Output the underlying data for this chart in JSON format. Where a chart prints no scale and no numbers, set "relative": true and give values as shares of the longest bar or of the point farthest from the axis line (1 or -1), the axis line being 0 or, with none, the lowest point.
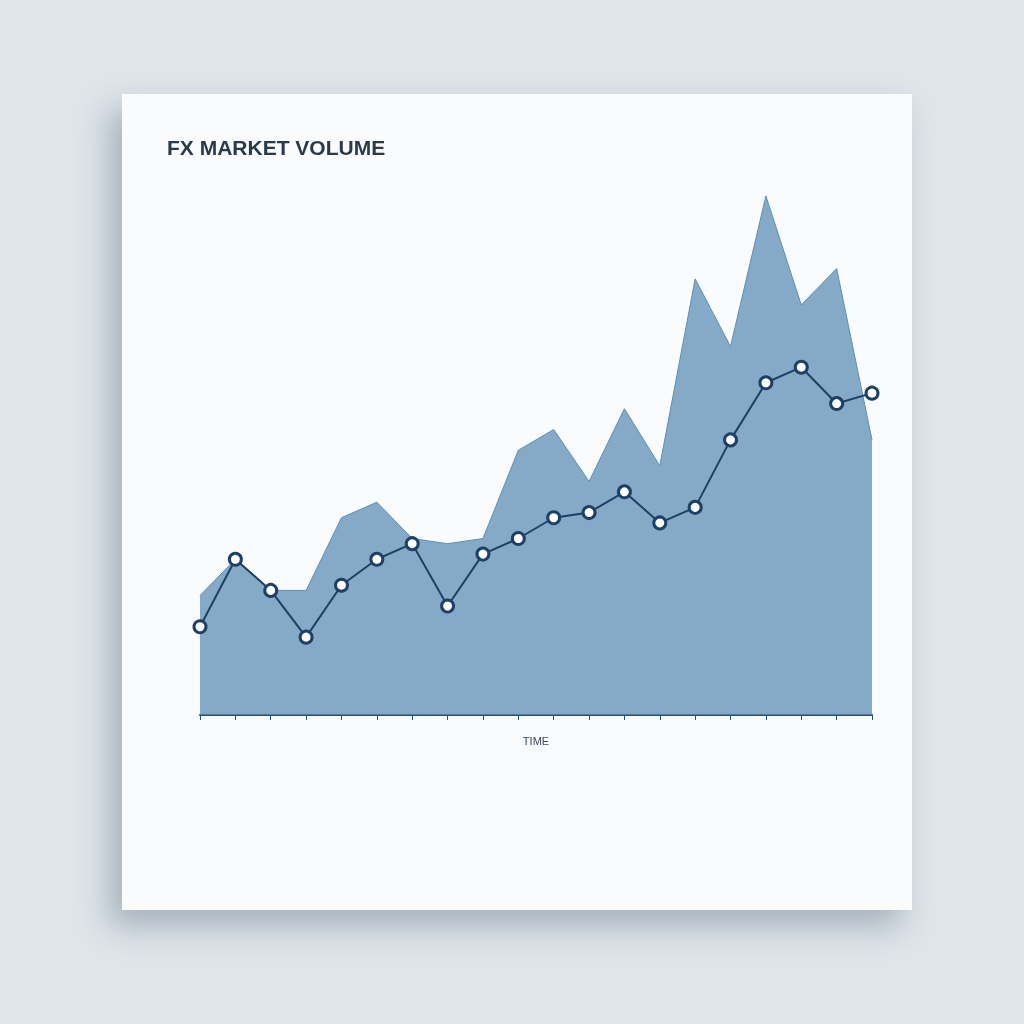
{
  "chart_data": {
    "type": "area",
    "title": "FX MARKET VOLUME",
    "xlabel": "TIME",
    "relative": true,
    "categories": [
      null,
      null,
      null,
      null,
      null,
      null,
      null,
      null,
      null,
      null,
      null,
      null,
      null,
      null,
      null,
      null,
      null,
      null,
      null,
      null
    ],
    "series": [
      {
        "color": "#5d8fb5",
        "values": [
          0.23,
          0.3,
          0.24,
          0.24,
          0.38,
          0.41,
          0.34,
          0.33,
          0.34,
          0.51,
          0.55,
          0.45,
          0.59,
          0.48,
          0.84,
          0.71,
          1,
          0.79,
          0.86,
          0.53
        ]
      },
      {
        "type": "line",
        "color": "#1f3f66",
        "marker": "circle",
        "values": [
          0.17,
          0.3,
          0.24,
          0.15,
          0.25,
          0.3,
          0.33,
          0.21,
          0.31,
          0.34,
          0.38,
          0.39,
          0.43,
          0.37,
          0.4,
          0.53,
          0.64,
          0.67,
          0.6,
          0.62
        ]
      }
    ]
  }
}
